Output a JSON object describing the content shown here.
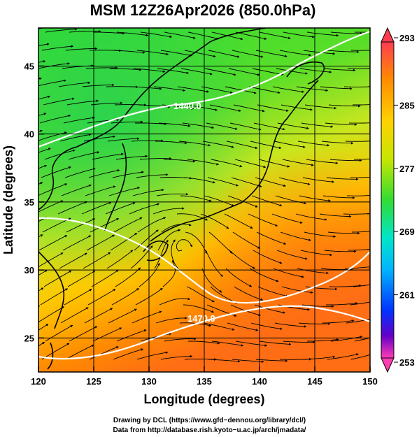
{
  "title": "MSM 12Z26Apr2026 (850.0hPa)",
  "x_axis": {
    "label": "Longitude (degrees)",
    "ticks": [
      "120",
      "125",
      "130",
      "135",
      "140",
      "145",
      "150"
    ],
    "range": [
      120,
      150
    ]
  },
  "y_axis": {
    "label": "Latitude  (degrees)",
    "ticks": [
      "25",
      "30",
      "35",
      "40",
      "45"
    ],
    "range": [
      22.5,
      47.8
    ]
  },
  "colorbar": {
    "ticks": [
      "293",
      "285",
      "277",
      "269",
      "261",
      "253"
    ],
    "range": [
      253,
      293
    ],
    "palette": [
      "#ff3c78",
      "#c800c8",
      "#3228c8",
      "#0064ff",
      "#00c8ff",
      "#00e6b4",
      "#32dc32",
      "#96e600",
      "#d2e600",
      "#ffc800",
      "#ff8c00",
      "#ff5a28"
    ]
  },
  "contour_labels": [
    "1440.0",
    "1470.0"
  ],
  "credits": {
    "line1": "Drawing by DCL (https://www.gfd−dennou.org/library/dcl/)",
    "line2": "Data from http://database.rish.kyoto−u.ac.jp/arch/jmadata/"
  },
  "colors": {
    "streamline": "#000000",
    "contour": "#ffffff",
    "coast": "#000000"
  }
}
